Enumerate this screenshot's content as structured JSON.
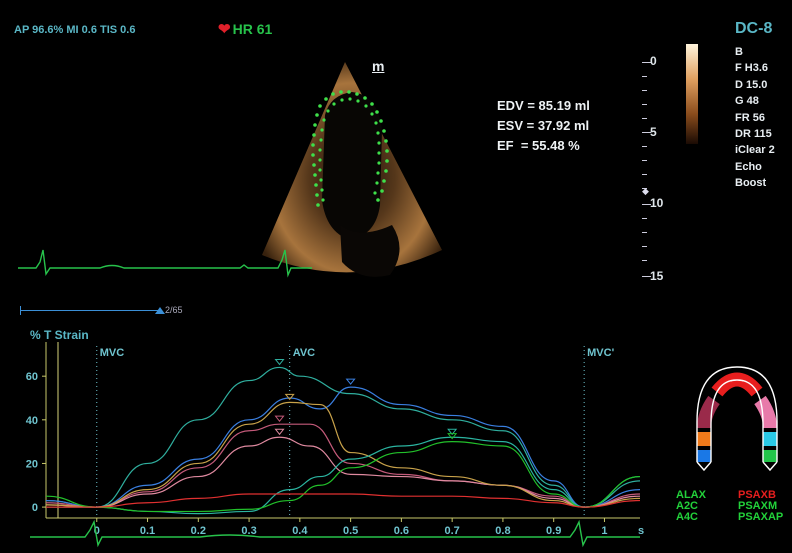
{
  "header": {
    "acoustic": "AP 96.6% MI 0.6 TIS 0.6",
    "hr_label": "HR 61",
    "heart_icon": "heart-icon",
    "marker": "m"
  },
  "measurements": [
    "EDV = 85.19 ml",
    "ESV = 37.92 ml",
    "EF  = 55.48 %"
  ],
  "probe": "DC-8",
  "params": [
    "B",
    "F H3.6",
    "D 15.0",
    "G 48",
    "FR 56",
    "DR 115",
    "iClear 2",
    "Echo Boost"
  ],
  "depth_labels": [
    "0",
    "5",
    "10",
    "15"
  ],
  "frame_counter": "2/65",
  "strain": {
    "title": "% T Strain",
    "events": [
      "MVC",
      "AVC",
      "MVC'"
    ]
  },
  "legend": {
    "left": [
      "ALAX",
      "A2C",
      "A4C"
    ],
    "right": [
      "PSAXB",
      "PSAXM",
      "PSAXAP"
    ],
    "colors_left": "#22d13a",
    "colors_right_first": "#e61e1e"
  },
  "chart_data": {
    "type": "line",
    "title": "% T Strain",
    "xlabel": "s",
    "ylabel": "",
    "xlim": [
      -0.1,
      1.07
    ],
    "ylim": [
      -5,
      72
    ],
    "x_ticks": [
      "0",
      "0.1",
      "0.2",
      "0.3",
      "0.4",
      "0.5",
      "0.6",
      "0.7",
      "0.8",
      "0.9",
      "1"
    ],
    "y_ticks": [
      "0",
      "20",
      "40",
      "60"
    ],
    "events": [
      {
        "label": "MVC",
        "x": 0.0
      },
      {
        "label": "AVC",
        "x": 0.38
      },
      {
        "label": "MVC'",
        "x": 0.96
      }
    ],
    "series": [
      {
        "color": "#2fae9e",
        "values": [
          [
            -0.1,
            3
          ],
          [
            0,
            0
          ],
          [
            0.1,
            20
          ],
          [
            0.2,
            40
          ],
          [
            0.3,
            58
          ],
          [
            0.36,
            64
          ],
          [
            0.4,
            60
          ],
          [
            0.5,
            52
          ],
          [
            0.6,
            45
          ],
          [
            0.7,
            40
          ],
          [
            0.8,
            35
          ],
          [
            0.9,
            10
          ],
          [
            0.96,
            0
          ],
          [
            1.07,
            12
          ]
        ]
      },
      {
        "color": "#3a7fe0",
        "values": [
          [
            -0.1,
            3
          ],
          [
            0,
            0
          ],
          [
            0.1,
            10
          ],
          [
            0.2,
            22
          ],
          [
            0.3,
            40
          ],
          [
            0.38,
            50
          ],
          [
            0.44,
            45
          ],
          [
            0.5,
            55
          ],
          [
            0.6,
            47
          ],
          [
            0.7,
            42
          ],
          [
            0.8,
            37
          ],
          [
            0.9,
            12
          ],
          [
            0.96,
            0
          ],
          [
            1.07,
            8
          ]
        ]
      },
      {
        "color": "#c45a7a",
        "values": [
          [
            -0.1,
            2
          ],
          [
            0,
            0
          ],
          [
            0.1,
            7
          ],
          [
            0.2,
            18
          ],
          [
            0.3,
            35
          ],
          [
            0.36,
            38
          ],
          [
            0.42,
            38
          ],
          [
            0.5,
            20
          ],
          [
            0.6,
            15
          ],
          [
            0.7,
            12
          ],
          [
            0.8,
            10
          ],
          [
            0.9,
            5
          ],
          [
            0.96,
            0
          ],
          [
            1.07,
            6
          ]
        ]
      },
      {
        "color": "#e08aa0",
        "values": [
          [
            -0.1,
            1
          ],
          [
            0,
            0
          ],
          [
            0.1,
            6
          ],
          [
            0.2,
            14
          ],
          [
            0.3,
            28
          ],
          [
            0.36,
            32
          ],
          [
            0.42,
            28
          ],
          [
            0.5,
            15
          ],
          [
            0.6,
            14
          ],
          [
            0.7,
            12
          ],
          [
            0.8,
            10
          ],
          [
            0.9,
            4
          ],
          [
            0.96,
            0
          ],
          [
            1.07,
            5
          ]
        ]
      },
      {
        "color": "#c8a24a",
        "values": [
          [
            -0.1,
            1
          ],
          [
            0,
            0
          ],
          [
            0.1,
            8
          ],
          [
            0.2,
            20
          ],
          [
            0.3,
            38
          ],
          [
            0.38,
            48
          ],
          [
            0.44,
            47
          ],
          [
            0.5,
            25
          ],
          [
            0.6,
            18
          ],
          [
            0.7,
            14
          ],
          [
            0.8,
            10
          ],
          [
            0.9,
            3
          ],
          [
            0.96,
            0
          ],
          [
            1.07,
            4
          ]
        ]
      },
      {
        "color": "#2bb4a0",
        "values": [
          [
            -0.1,
            0
          ],
          [
            0,
            0
          ],
          [
            0.1,
            -2
          ],
          [
            0.2,
            -3
          ],
          [
            0.3,
            -2
          ],
          [
            0.38,
            8
          ],
          [
            0.44,
            14
          ],
          [
            0.5,
            22
          ],
          [
            0.6,
            28
          ],
          [
            0.7,
            32
          ],
          [
            0.8,
            30
          ],
          [
            0.9,
            8
          ],
          [
            0.96,
            0
          ],
          [
            1.07,
            14
          ]
        ]
      },
      {
        "color": "#22c02a",
        "values": [
          [
            -0.1,
            5
          ],
          [
            0,
            0
          ],
          [
            0.1,
            -2
          ],
          [
            0.2,
            -2
          ],
          [
            0.3,
            -1
          ],
          [
            0.38,
            3
          ],
          [
            0.44,
            10
          ],
          [
            0.5,
            18
          ],
          [
            0.6,
            25
          ],
          [
            0.7,
            30
          ],
          [
            0.8,
            28
          ],
          [
            0.9,
            6
          ],
          [
            0.96,
            0
          ],
          [
            1.07,
            14
          ]
        ]
      },
      {
        "color": "#e03030",
        "values": [
          [
            -0.1,
            0
          ],
          [
            0,
            0
          ],
          [
            0.1,
            2
          ],
          [
            0.2,
            4
          ],
          [
            0.3,
            6
          ],
          [
            0.4,
            6
          ],
          [
            0.5,
            6
          ],
          [
            0.6,
            5
          ],
          [
            0.7,
            5
          ],
          [
            0.8,
            4
          ],
          [
            0.9,
            2
          ],
          [
            0.96,
            0
          ],
          [
            1.07,
            3
          ]
        ]
      }
    ]
  }
}
